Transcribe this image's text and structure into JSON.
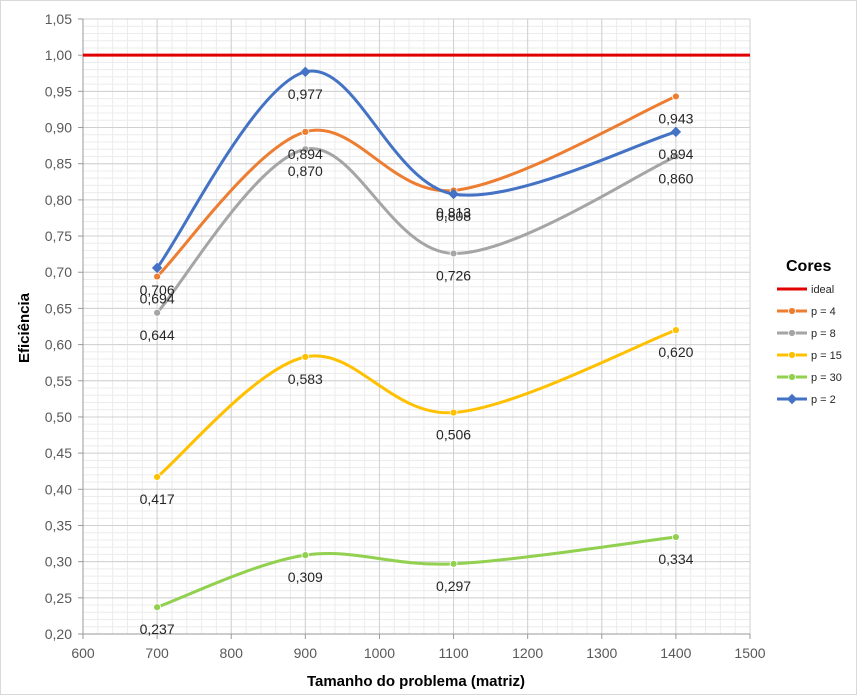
{
  "chart_data": {
    "type": "line",
    "smooth": true,
    "title": "",
    "xlabel": "Tamanho do problema (matriz)",
    "ylabel": "Eficiência",
    "xlim": [
      600,
      1500
    ],
    "ylim": [
      0.2,
      1.05
    ],
    "x_ticks": [
      "600",
      "700",
      "800",
      "900",
      "1000",
      "1100",
      "1200",
      "1300",
      "1400",
      "1500"
    ],
    "y_ticks": [
      "0,20",
      "0,25",
      "0,30",
      "0,35",
      "0,40",
      "0,45",
      "0,50",
      "0,55",
      "0,60",
      "0,65",
      "0,70",
      "0,75",
      "0,80",
      "0,85",
      "0,90",
      "0,95",
      "1,00",
      "1,05"
    ],
    "grid": true,
    "legend_title": "Cores",
    "legend_position": "right",
    "x": [
      700,
      900,
      1100,
      1400
    ],
    "series": [
      {
        "name": "ideal",
        "color": "#e00000",
        "marker": "none",
        "values": [
          1.0,
          1.0,
          1.0,
          1.0
        ],
        "labels": [
          "",
          "",
          "",
          ""
        ]
      },
      {
        "name": "p = 4",
        "color": "#ed7d31",
        "marker": "circle",
        "values": [
          0.694,
          0.894,
          0.813,
          0.943
        ],
        "labels": [
          "0,694",
          "0,894",
          "0,813",
          "0,943"
        ]
      },
      {
        "name": "p = 8",
        "color": "#a5a5a5",
        "marker": "circle",
        "values": [
          0.644,
          0.87,
          0.726,
          0.86
        ],
        "labels": [
          "0,644",
          "0,870",
          "0,726",
          "0,860"
        ]
      },
      {
        "name": "p = 15",
        "color": "#ffc000",
        "marker": "circle",
        "values": [
          0.417,
          0.583,
          0.506,
          0.62
        ],
        "labels": [
          "0,417",
          "0,583",
          "0,506",
          "0,620"
        ]
      },
      {
        "name": "p = 30",
        "color": "#92d050",
        "marker": "circle",
        "values": [
          0.237,
          0.309,
          0.297,
          0.334
        ],
        "labels": [
          "0,237",
          "0,309",
          "0,297",
          "0,334"
        ]
      },
      {
        "name": "p = 2",
        "color": "#4472c4",
        "marker": "diamond",
        "values": [
          0.706,
          0.977,
          0.808,
          0.894
        ],
        "labels": [
          "0,706",
          "0,977",
          "0,808",
          "0,894"
        ]
      }
    ]
  }
}
